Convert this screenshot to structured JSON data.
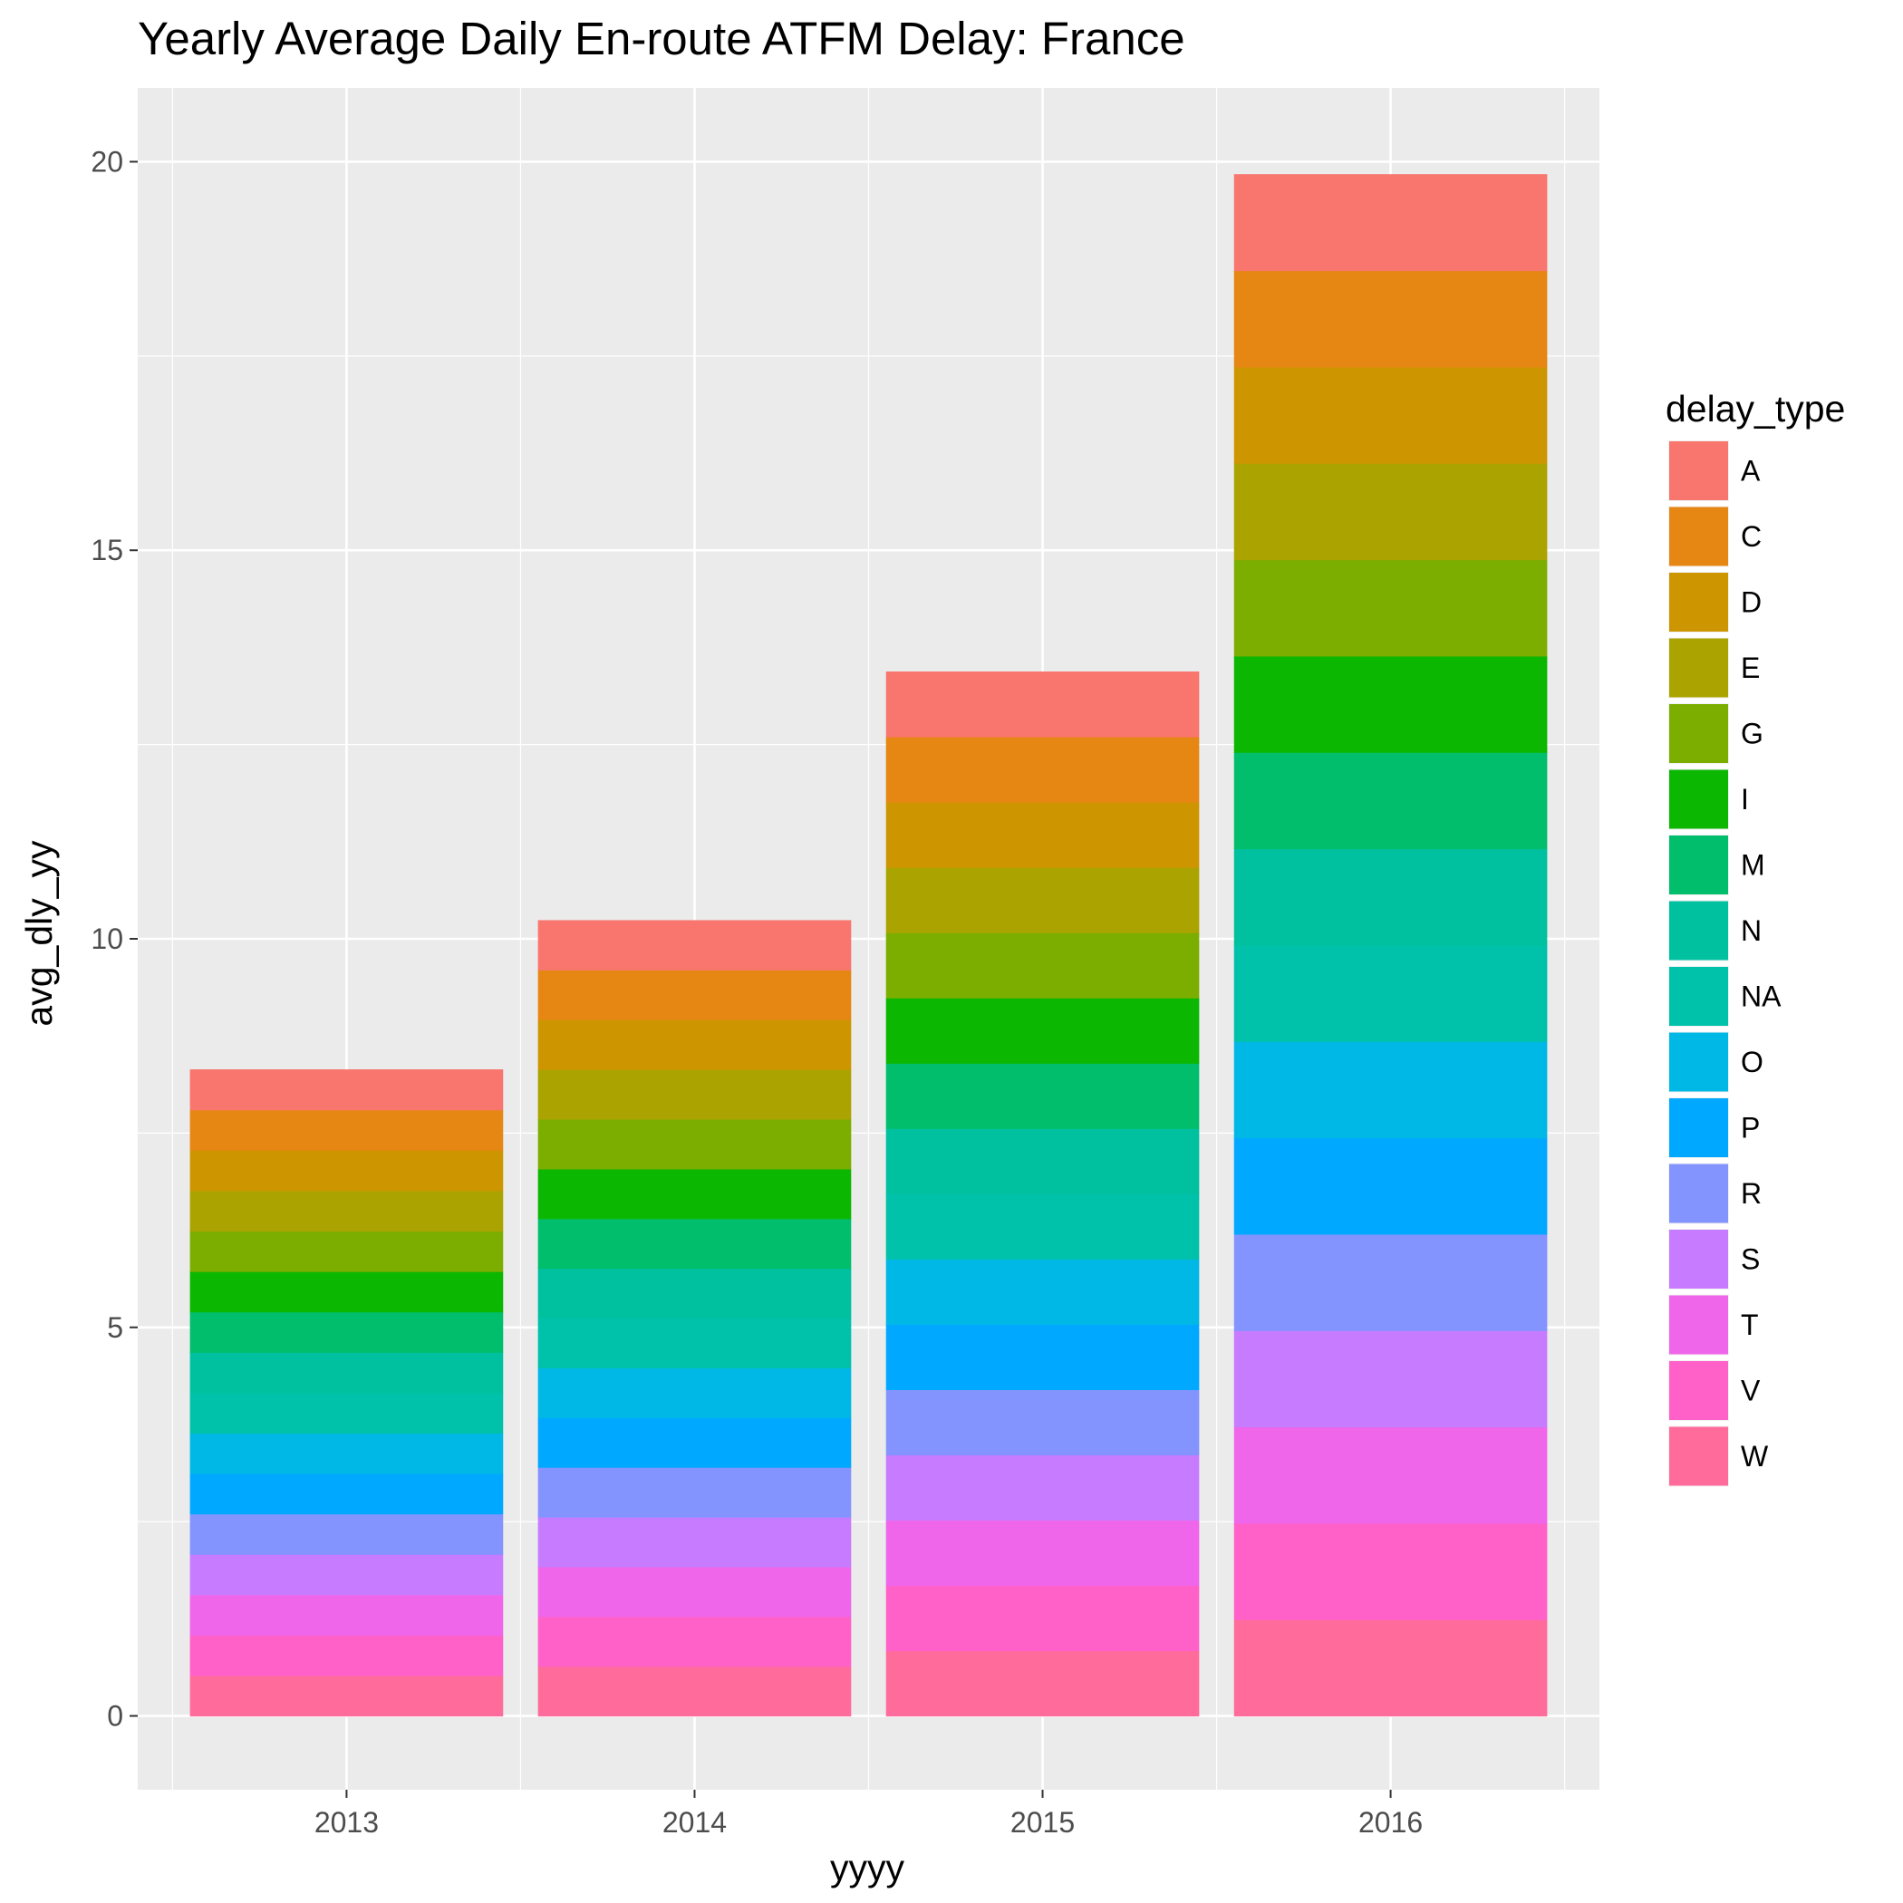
{
  "chart_data": {
    "type": "bar",
    "stacked": true,
    "title": "Yearly Average Daily En-route ATFM Delay: France",
    "xlabel": "yyyy",
    "ylabel": "avg_dly_yy",
    "categories": [
      "2013",
      "2014",
      "2015",
      "2016"
    ],
    "ylim": [
      -0.95,
      20.95
    ],
    "yticks": [
      0,
      5,
      10,
      15,
      20
    ],
    "grid": true,
    "legend": {
      "title": "delay_type",
      "position": "right"
    },
    "series": [
      {
        "name": "W",
        "color": "#FF6C9C",
        "values": [
          0.52,
          0.64,
          0.84,
          1.24
        ]
      },
      {
        "name": "V",
        "color": "#FF61C9",
        "values": [
          0.52,
          0.64,
          0.84,
          1.24
        ]
      },
      {
        "name": "T",
        "color": "#F066EA",
        "values": [
          0.52,
          0.64,
          0.84,
          1.24
        ]
      },
      {
        "name": "S",
        "color": "#C77CFF",
        "values": [
          0.52,
          0.64,
          0.84,
          1.24
        ]
      },
      {
        "name": "R",
        "color": "#8494FF",
        "values": [
          0.52,
          0.64,
          0.84,
          1.24
        ]
      },
      {
        "name": "P",
        "color": "#00A9FF",
        "values": [
          0.52,
          0.64,
          0.84,
          1.24
        ]
      },
      {
        "name": "O",
        "color": "#00B8E5",
        "values": [
          0.52,
          0.64,
          0.84,
          1.24
        ]
      },
      {
        "name": "NA",
        "color": "#00C1AA",
        "values": [
          0.52,
          0.64,
          0.84,
          1.24
        ]
      },
      {
        "name": "N",
        "color": "#00C19F",
        "values": [
          0.52,
          0.64,
          0.84,
          1.24
        ]
      },
      {
        "name": "M",
        "color": "#00BE6C",
        "values": [
          0.52,
          0.64,
          0.84,
          1.24
        ]
      },
      {
        "name": "I",
        "color": "#0CB702",
        "values": [
          0.52,
          0.64,
          0.84,
          1.24
        ]
      },
      {
        "name": "G",
        "color": "#7CAE00",
        "values": [
          0.52,
          0.64,
          0.84,
          1.24
        ]
      },
      {
        "name": "E",
        "color": "#ABA300",
        "values": [
          0.52,
          0.64,
          0.84,
          1.24
        ]
      },
      {
        "name": "D",
        "color": "#CD9600",
        "values": [
          0.52,
          0.64,
          0.84,
          1.24
        ]
      },
      {
        "name": "C",
        "color": "#E68613",
        "values": [
          0.52,
          0.64,
          0.84,
          1.24
        ]
      },
      {
        "name": "A",
        "color": "#F8766D",
        "values": [
          0.52,
          0.64,
          0.84,
          1.24
        ]
      }
    ]
  },
  "legend_order": [
    "A",
    "C",
    "D",
    "E",
    "G",
    "I",
    "M",
    "N",
    "NA",
    "O",
    "P",
    "R",
    "S",
    "T",
    "V",
    "W"
  ]
}
